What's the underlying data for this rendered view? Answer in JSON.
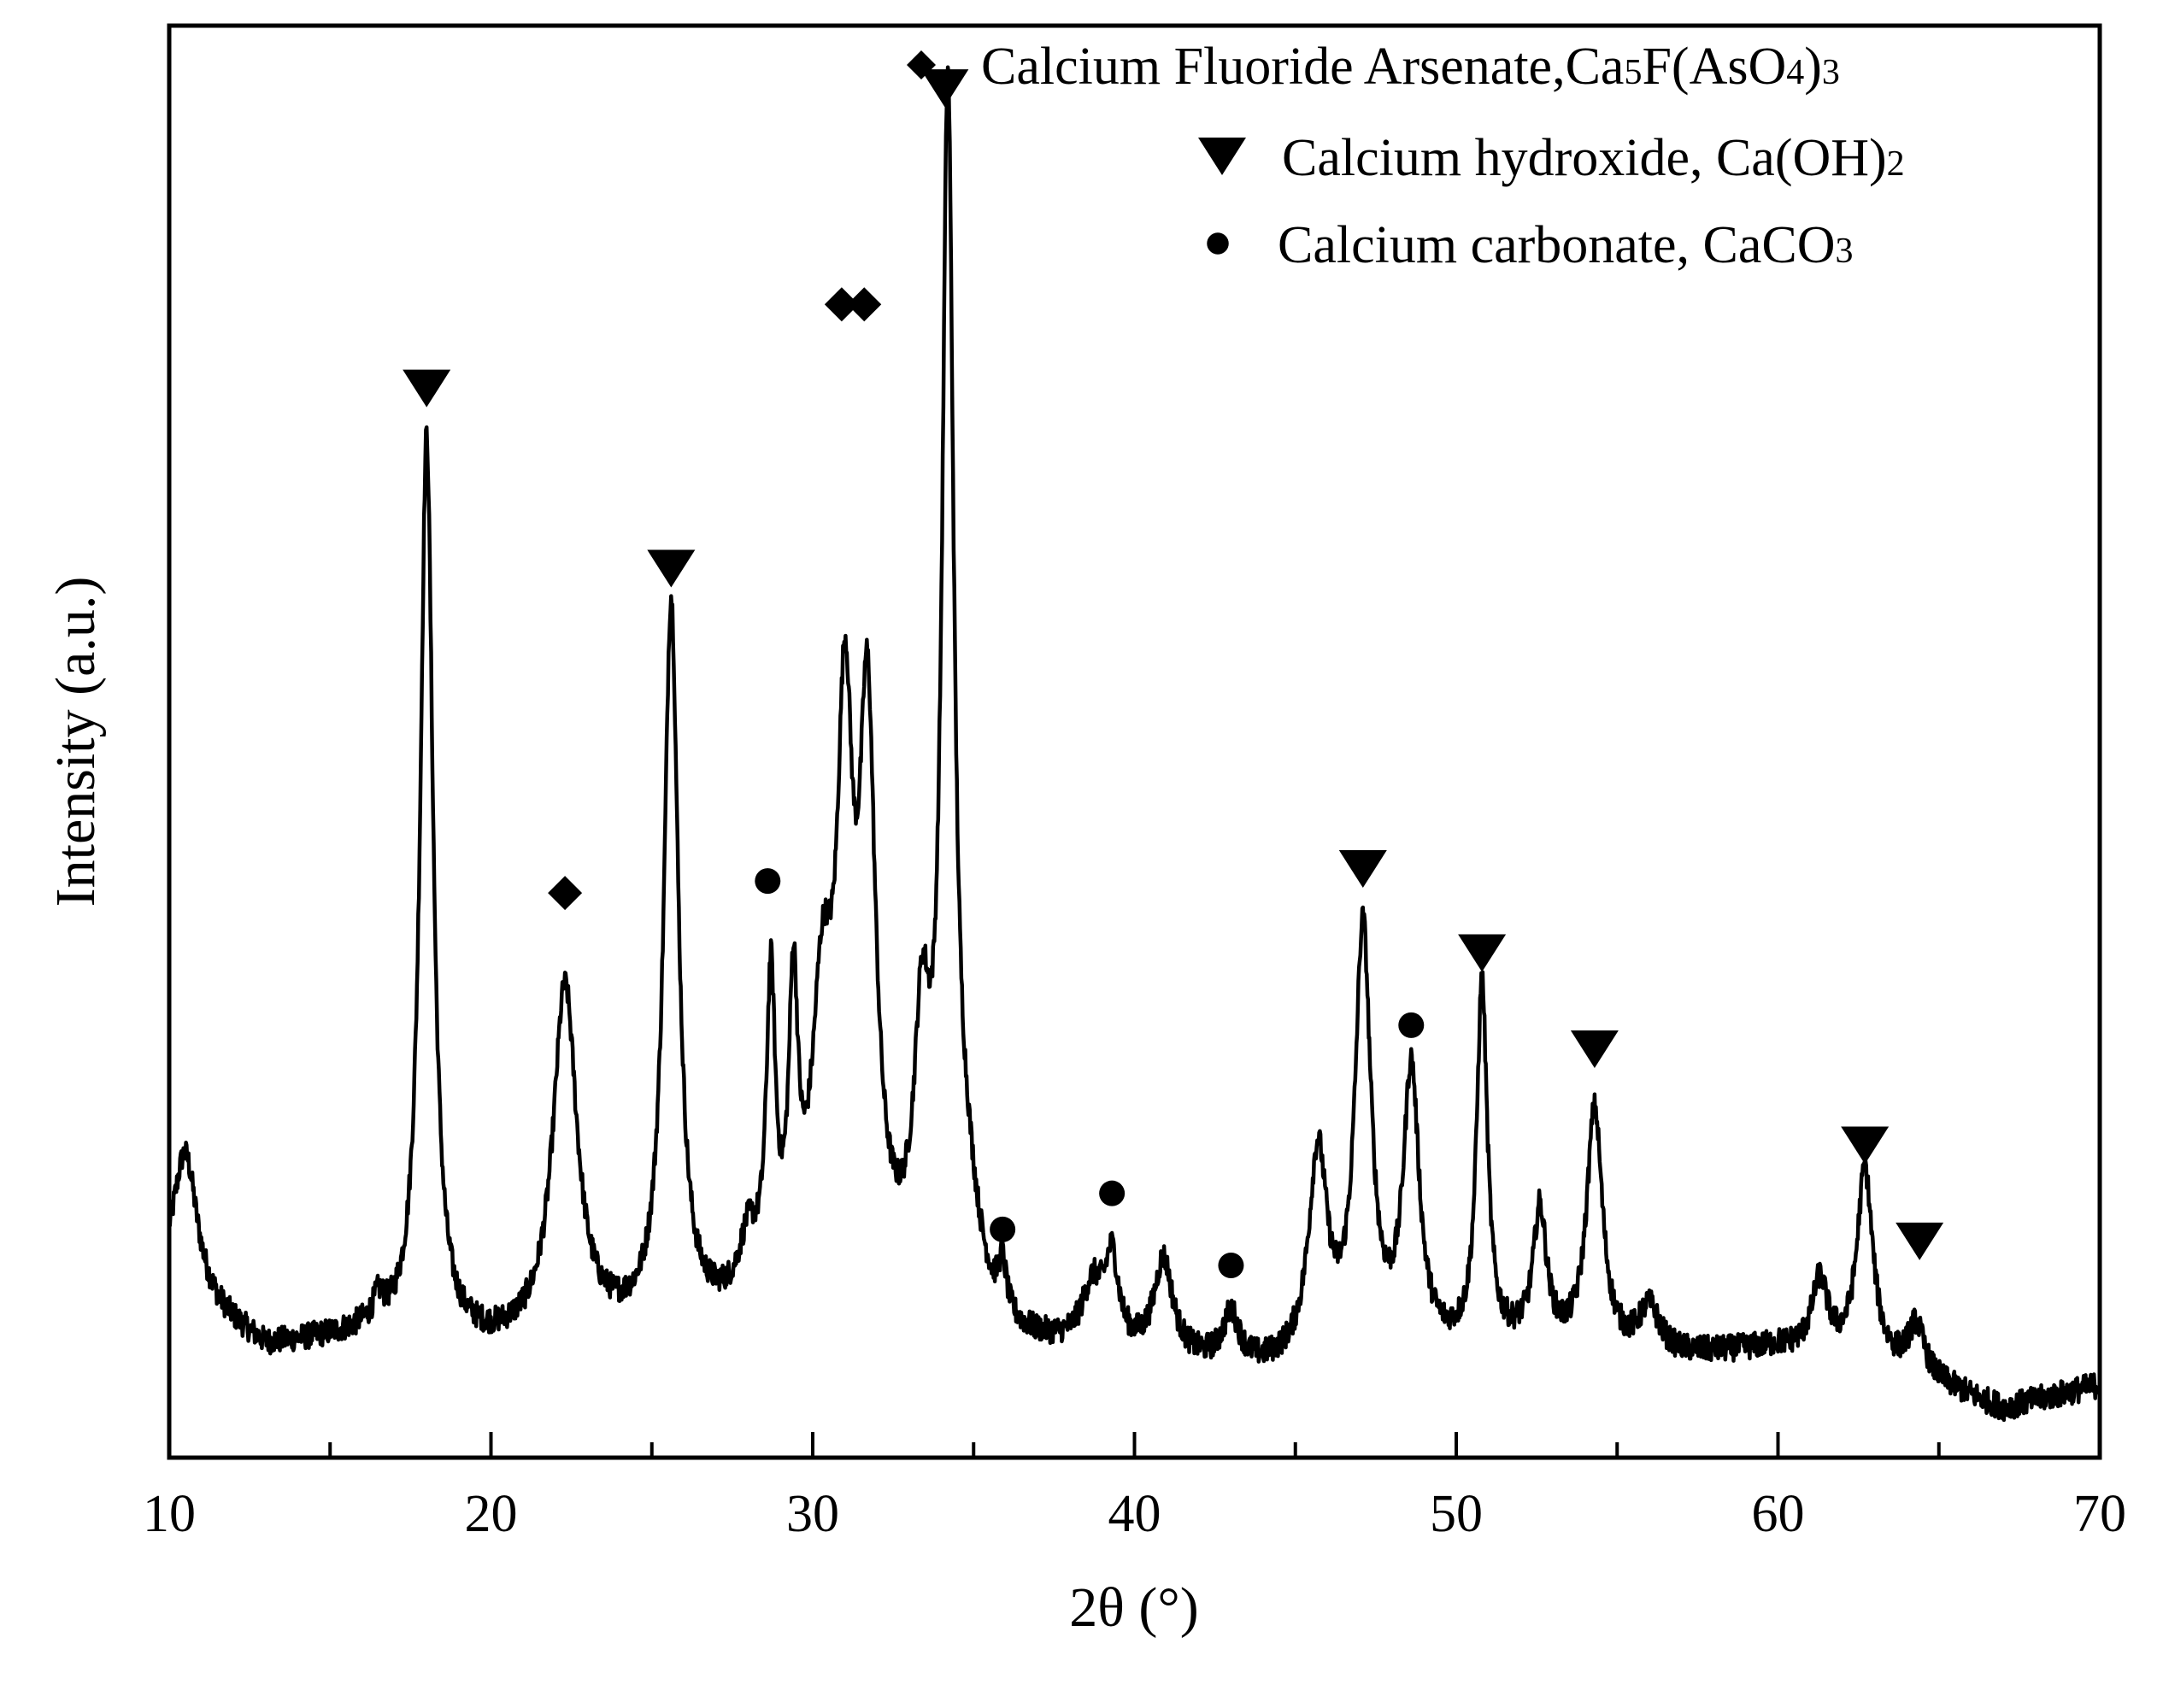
{
  "chart_data": {
    "type": "line",
    "title": "",
    "xlabel": "2θ (°)",
    "ylabel": "Intensity (a.u.)",
    "xlim": [
      10,
      70
    ],
    "ylim": [
      0,
      100
    ],
    "xticks": [
      10,
      20,
      30,
      40,
      50,
      60,
      70
    ],
    "grid": false,
    "legend_position": "top-right",
    "colors": {
      "line": "#000000",
      "markers": "#000000"
    },
    "legend": [
      {
        "marker": "diamond",
        "parts": [
          {
            "text": "Calcium Fluoride Arsenate,Ca",
            "sub": false
          },
          {
            "text": "5",
            "sub": true
          },
          {
            "text": "F(AsO",
            "sub": false
          },
          {
            "text": "4",
            "sub": true
          },
          {
            "text": ")",
            "sub": false
          },
          {
            "text": "3",
            "sub": true
          }
        ]
      },
      {
        "marker": "triangle-down",
        "parts": [
          {
            "text": "Calcium hydroxide, Ca(OH)",
            "sub": false
          },
          {
            "text": "2",
            "sub": true
          }
        ]
      },
      {
        "marker": "circle",
        "parts": [
          {
            "text": "Calcium carbonate, CaCO",
            "sub": false
          },
          {
            "text": "3",
            "sub": true
          }
        ]
      }
    ],
    "series": [
      {
        "baseline": [
          [
            10,
            14
          ],
          [
            13,
            9
          ],
          [
            16,
            10
          ],
          [
            20,
            9
          ],
          [
            24,
            10
          ],
          [
            28,
            11
          ],
          [
            32,
            13
          ],
          [
            36,
            9
          ],
          [
            40,
            8
          ],
          [
            44,
            7
          ],
          [
            48,
            8
          ],
          [
            52,
            9
          ],
          [
            56,
            8
          ],
          [
            60,
            9
          ],
          [
            64,
            7
          ],
          [
            67,
            4
          ],
          [
            70,
            6
          ]
        ],
        "peaks": [
          {
            "x": 10.5,
            "h": 12,
            "w": 0.45
          },
          {
            "x": 16.5,
            "h": 2,
            "w": 0.2
          },
          {
            "x": 18.0,
            "h": 75,
            "w": 0.24
          },
          {
            "x": 22.3,
            "h": 29,
            "w": 0.45
          },
          {
            "x": 25.6,
            "h": 60,
            "w": 0.27
          },
          {
            "x": 28.0,
            "h": 5,
            "w": 0.35
          },
          {
            "x": 28.7,
            "h": 25,
            "w": 0.17
          },
          {
            "x": 29.4,
            "h": 23,
            "w": 0.17
          },
          {
            "x": 30.3,
            "h": 22,
            "w": 0.4
          },
          {
            "x": 31.0,
            "h": 42,
            "w": 0.3
          },
          {
            "x": 31.7,
            "h": 44,
            "w": 0.3
          },
          {
            "x": 33.4,
            "h": 20,
            "w": 0.3
          },
          {
            "x": 34.2,
            "h": 98,
            "w": 0.22
          },
          {
            "x": 34.8,
            "h": 7,
            "w": 0.5
          },
          {
            "x": 35.9,
            "h": 4,
            "w": 0.15
          },
          {
            "x": 38.7,
            "h": 5,
            "w": 0.4
          },
          {
            "x": 39.3,
            "h": 7,
            "w": 0.25
          },
          {
            "x": 40.9,
            "h": 8,
            "w": 0.35
          },
          {
            "x": 43.0,
            "h": 4,
            "w": 0.3
          },
          {
            "x": 45.7,
            "h": 17,
            "w": 0.35
          },
          {
            "x": 47.1,
            "h": 35,
            "w": 0.3
          },
          {
            "x": 48.6,
            "h": 23,
            "w": 0.3
          },
          {
            "x": 50.8,
            "h": 30,
            "w": 0.2
          },
          {
            "x": 52.6,
            "h": 11,
            "w": 0.25
          },
          {
            "x": 54.3,
            "h": 20,
            "w": 0.3
          },
          {
            "x": 56.0,
            "h": 4,
            "w": 0.4
          },
          {
            "x": 61.3,
            "h": 6,
            "w": 0.3
          },
          {
            "x": 62.7,
            "h": 16,
            "w": 0.3
          },
          {
            "x": 64.3,
            "h": 4,
            "w": 0.3
          }
        ]
      }
    ],
    "phase_markers": [
      {
        "phase": "triangle-down",
        "x": 18.0,
        "y": 89
      },
      {
        "phase": "diamond",
        "x": 22.3,
        "y": 47
      },
      {
        "phase": "triangle-down",
        "x": 25.6,
        "y": 74
      },
      {
        "phase": "circle",
        "x": 28.6,
        "y": 48
      },
      {
        "phase": "diamond",
        "x": 30.9,
        "y": 96
      },
      {
        "phase": "diamond",
        "x": 31.6,
        "y": 96
      },
      {
        "phase": "triangle-down",
        "x": 34.1,
        "y": 114
      },
      {
        "phase": "circle",
        "x": 35.9,
        "y": 19
      },
      {
        "phase": "circle",
        "x": 39.3,
        "y": 22
      },
      {
        "phase": "circle",
        "x": 43.0,
        "y": 16
      },
      {
        "phase": "triangle-down",
        "x": 47.1,
        "y": 49
      },
      {
        "phase": "circle",
        "x": 48.6,
        "y": 36
      },
      {
        "phase": "triangle-down",
        "x": 50.8,
        "y": 42
      },
      {
        "phase": "triangle-down",
        "x": 54.3,
        "y": 34
      },
      {
        "phase": "triangle-down",
        "x": 62.7,
        "y": 26
      },
      {
        "phase": "triangle-down",
        "x": 64.4,
        "y": 18
      }
    ]
  }
}
